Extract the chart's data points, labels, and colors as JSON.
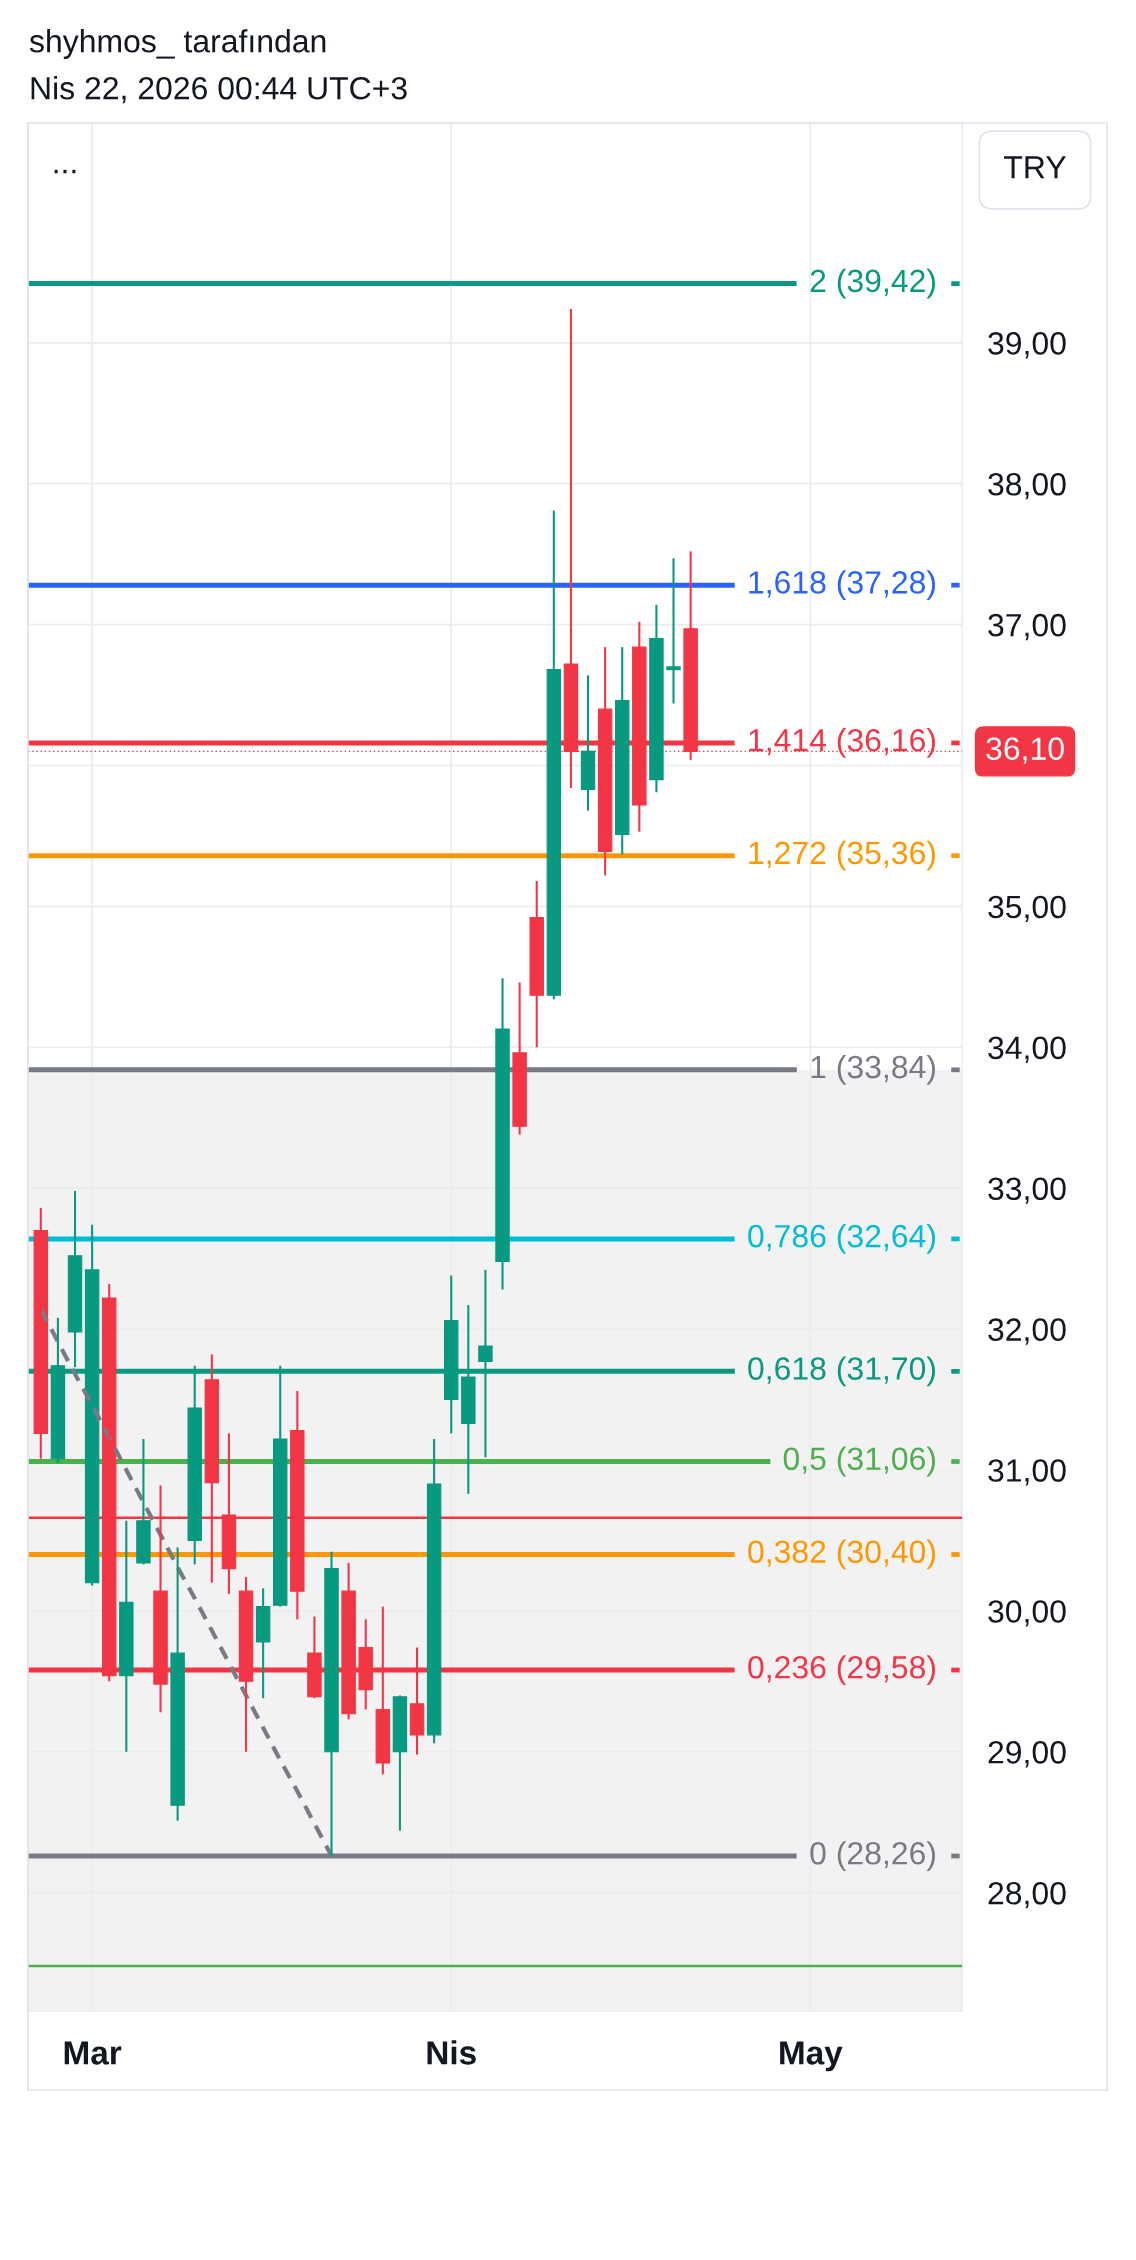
{
  "chart_data": {
    "type": "candlestick",
    "title": "shyhmos_ tarafından",
    "subtitle": "Nis 22, 2026 00:44 UTC+3",
    "ylabel": "TRY",
    "annotations": [
      "..."
    ],
    "categories": [
      null,
      null,
      null,
      "Mar",
      null,
      null,
      null,
      null,
      null,
      null,
      null,
      null,
      null,
      null,
      null,
      null,
      null,
      null,
      null,
      null,
      null,
      null,
      null,
      null,
      "Nis",
      null,
      null,
      null,
      null,
      null,
      null,
      null,
      null,
      null,
      null,
      null,
      null,
      null,
      null,
      null,
      null,
      null,
      null,
      null,
      null,
      "May",
      null,
      null,
      null,
      null,
      null,
      null,
      null,
      null
    ],
    "ohlc": [
      [
        32.7,
        32.86,
        31.08,
        31.26
      ],
      [
        31.08,
        32.08,
        31.05,
        31.74
      ],
      [
        31.98,
        32.98,
        31.73,
        32.52
      ],
      [
        30.2,
        32.74,
        30.18,
        32.42
      ],
      [
        32.22,
        32.32,
        29.5,
        29.54
      ],
      [
        29.54,
        30.64,
        29.0,
        30.06
      ],
      [
        30.34,
        31.22,
        30.33,
        30.64
      ],
      [
        30.14,
        30.89,
        29.28,
        29.48
      ],
      [
        28.62,
        30.45,
        28.51,
        29.7
      ],
      [
        30.5,
        31.74,
        30.33,
        31.44
      ],
      [
        31.64,
        31.82,
        30.2,
        30.91
      ],
      [
        30.68,
        31.26,
        30.12,
        30.3
      ],
      [
        30.14,
        30.24,
        29.0,
        29.5
      ],
      [
        29.78,
        30.16,
        29.38,
        30.03
      ],
      [
        30.04,
        31.74,
        30.03,
        31.22
      ],
      [
        31.28,
        31.56,
        29.94,
        30.14
      ],
      [
        29.7,
        29.96,
        29.38,
        29.39
      ],
      [
        29.0,
        30.42,
        28.26,
        30.3
      ],
      [
        30.14,
        30.34,
        29.23,
        29.27
      ],
      [
        29.74,
        29.94,
        29.3,
        29.44
      ],
      [
        29.3,
        30.03,
        28.84,
        28.92
      ],
      [
        29.0,
        29.4,
        28.44,
        29.39
      ],
      [
        29.34,
        29.74,
        28.98,
        29.12
      ],
      [
        29.12,
        31.22,
        29.06,
        30.9
      ],
      [
        31.5,
        32.38,
        31.26,
        32.06
      ],
      [
        31.33,
        32.17,
        30.83,
        31.66
      ],
      [
        31.77,
        32.42,
        31.09,
        31.88
      ],
      [
        32.48,
        34.49,
        32.28,
        34.13
      ],
      [
        33.96,
        34.46,
        33.38,
        33.44
      ],
      [
        34.92,
        35.18,
        34.0,
        34.37
      ],
      [
        34.37,
        37.81,
        34.34,
        36.68
      ],
      [
        36.72,
        39.24,
        35.84,
        36.1
      ],
      [
        35.83,
        36.64,
        35.68,
        36.1
      ],
      [
        36.4,
        36.84,
        35.22,
        35.39
      ],
      [
        35.51,
        36.84,
        35.37,
        36.46
      ],
      [
        36.84,
        37.02,
        35.53,
        35.72
      ],
      [
        35.9,
        37.14,
        35.81,
        36.9
      ],
      [
        36.68,
        37.47,
        36.44,
        36.7
      ],
      [
        36.97,
        37.52,
        36.04,
        36.1
      ],
      null,
      null,
      null,
      null,
      null,
      null,
      null,
      null,
      null,
      null,
      null,
      null,
      null,
      null,
      null
    ],
    "colors": [
      "#f23645",
      "#089981",
      "#089981",
      "#089981",
      "#f23645",
      "#089981",
      "#089981",
      "#f23645",
      "#089981",
      "#089981",
      "#f23645",
      "#f23645",
      "#f23645",
      "#089981",
      "#089981",
      "#f23645",
      "#f23645",
      "#089981",
      "#f23645",
      "#f23645",
      "#f23645",
      "#089981",
      "#f23645",
      "#089981",
      "#089981",
      "#089981",
      "#089981",
      "#089981",
      "#f23645",
      "#f23645",
      "#089981",
      "#f23645",
      "#089981",
      "#f23645",
      "#089981",
      "#f23645",
      "#089981",
      "#089981",
      "#f23645",
      null,
      null,
      null,
      null,
      null,
      null,
      null,
      null,
      null,
      null,
      null,
      null,
      null,
      null,
      null
    ],
    "series": [
      {
        "type": "line",
        "color": "#787b86",
        "line_style": "dashed",
        "values": [
          32.14,
          31.91,
          31.68,
          31.46,
          31.23,
          31.0,
          30.77,
          30.54,
          30.31,
          30.09,
          29.86,
          29.63,
          29.4,
          29.17,
          28.94,
          28.72,
          28.49,
          28.26,
          null,
          null,
          null,
          null,
          null,
          null,
          null,
          null,
          null,
          null,
          null,
          null,
          null,
          null,
          null,
          null,
          null,
          null,
          null,
          null,
          null,
          null,
          null,
          null,
          null,
          null,
          null,
          null,
          null,
          null,
          null,
          null,
          null,
          null,
          null,
          null
        ]
      }
    ],
    "ylim": [
      27.16,
      40.56
    ],
    "yticks": [
      {
        "value": 28,
        "label": "28,00"
      },
      {
        "value": 29,
        "label": "29,00"
      },
      {
        "value": 30,
        "label": "30,00"
      },
      {
        "value": 31,
        "label": "31,00"
      },
      {
        "value": 32,
        "label": "32,00"
      },
      {
        "value": 33,
        "label": "33,00"
      },
      {
        "value": 34,
        "label": "34,00"
      },
      {
        "value": 35,
        "label": "35,00"
      },
      {
        "value": 36,
        "label": null
      },
      {
        "value": 37,
        "label": "37,00"
      },
      {
        "value": 38,
        "label": "38,00"
      },
      {
        "value": 39,
        "label": "39,00"
      }
    ],
    "grid": true,
    "bands": [
      {
        "axis": "y",
        "from": 27.16,
        "to": 33.84,
        "color": "#f2f2f2"
      }
    ],
    "ref_lines": [
      {
        "axis": "y",
        "value": 39.42,
        "label": "2 (39,42)",
        "color": "#089981"
      },
      {
        "axis": "y",
        "value": 37.28,
        "label": "1,618 (37,28)",
        "color": "#2962ff"
      },
      {
        "axis": "y",
        "value": 36.16,
        "label": "1,414 (36,16)",
        "color": "#f23645"
      },
      {
        "axis": "y",
        "value": 35.36,
        "label": "1,272 (35,36)",
        "color": "#ff9800"
      },
      {
        "axis": "y",
        "value": 33.84,
        "label": "1 (33,84)",
        "color": "#787b86"
      },
      {
        "axis": "y",
        "value": 32.64,
        "label": "0,786 (32,64)",
        "color": "#00bcd4"
      },
      {
        "axis": "y",
        "value": 31.7,
        "label": "0,618 (31,70)",
        "color": "#089981"
      },
      {
        "axis": "y",
        "value": 31.06,
        "label": "0,5 (31,06)",
        "color": "#4caf50"
      },
      {
        "axis": "y",
        "value": 30.4,
        "label": "0,382 (30,40)",
        "color": "#ff9800"
      },
      {
        "axis": "y",
        "value": 29.58,
        "label": "0,236 (29,58)",
        "color": "#f23645"
      },
      {
        "axis": "y",
        "value": 28.26,
        "label": "0 (28,26)",
        "color": "#787b86"
      },
      {
        "axis": "y",
        "value": 30.66,
        "color": "#f23645"
      },
      {
        "axis": "y",
        "value": 27.48,
        "color": "#4caf50"
      },
      {
        "axis": "y",
        "value": 36.1,
        "label": "36,10",
        "color": "#f23645",
        "line_style": "dotted"
      }
    ]
  }
}
